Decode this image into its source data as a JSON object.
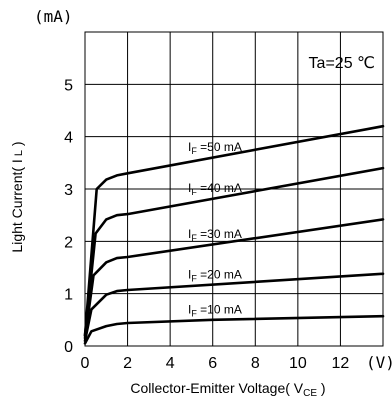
{
  "chart_data": {
    "type": "line",
    "y_unit": "(mA)",
    "x_unit": "(V)",
    "annotation": "Ta=25 ℃",
    "xlabel": {
      "main": "Collector-Emitter Voltage( V",
      "sub": "CE",
      "end": " )"
    },
    "ylabel": {
      "main": "Light Current( I",
      "sub": " L",
      "end": " )"
    },
    "xlim": [
      0,
      14
    ],
    "ylim": [
      0,
      6
    ],
    "x_ticks": [
      0,
      2,
      4,
      6,
      8,
      10,
      12
    ],
    "y_ticks": [
      0,
      1,
      2,
      3,
      4,
      5
    ],
    "grid": true,
    "series": [
      {
        "name": "I F =50 mA",
        "label_prefix": "I",
        "label_sub": "F",
        "label_rest": " =50 mA",
        "x": [
          0,
          0.55,
          1.0,
          1.5,
          2.0,
          14
        ],
        "y": [
          0.2,
          3.0,
          3.18,
          3.26,
          3.3,
          4.2
        ]
      },
      {
        "name": "I F =40 mA",
        "label_prefix": "I",
        "label_sub": "F",
        "label_rest": " =40 mA",
        "x": [
          0,
          0.5,
          1.0,
          1.5,
          2.0,
          14
        ],
        "y": [
          0.2,
          2.15,
          2.42,
          2.5,
          2.52,
          3.4
        ]
      },
      {
        "name": "I F =30 mA",
        "label_prefix": "I",
        "label_sub": "F",
        "label_rest": " =30 mA",
        "x": [
          0,
          0.4,
          1.0,
          1.5,
          2.0,
          14
        ],
        "y": [
          0.15,
          1.35,
          1.6,
          1.68,
          1.7,
          2.42
        ]
      },
      {
        "name": "I F =20 mA",
        "label_prefix": "I",
        "label_sub": "F",
        "label_rest": " =20 mA",
        "x": [
          0,
          0.3,
          1.0,
          1.5,
          2.0,
          14
        ],
        "y": [
          0.1,
          0.7,
          0.98,
          1.05,
          1.07,
          1.38
        ]
      },
      {
        "name": "I F =10 mA",
        "label_prefix": "I",
        "label_sub": "F",
        "label_rest": " =10 mA",
        "x": [
          0,
          0.3,
          1.0,
          1.5,
          2.0,
          6,
          14
        ],
        "y": [
          0.05,
          0.28,
          0.38,
          0.42,
          0.44,
          0.5,
          0.57
        ]
      }
    ]
  }
}
